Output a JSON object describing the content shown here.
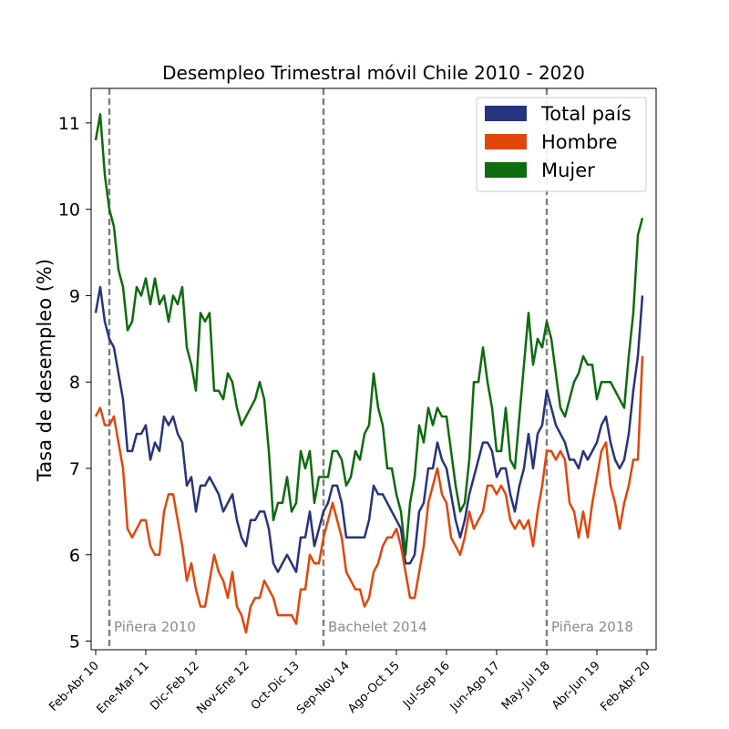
{
  "chart_data": {
    "type": "line",
    "title": "Desempleo Trimestral móvil Chile 2010 - 2020",
    "xlabel": "",
    "ylabel": "Tasa de desempleo (%)",
    "ylim": [
      4.9,
      11.4
    ],
    "yticks": [
      5,
      6,
      7,
      8,
      9,
      10,
      11
    ],
    "xticks": [
      {
        "index": 0,
        "label": "Feb-Abr 10"
      },
      {
        "index": 11,
        "label": "Ene-Mar 11"
      },
      {
        "index": 22,
        "label": "Dic-Feb 12"
      },
      {
        "index": 33,
        "label": "Nov-Ene 12"
      },
      {
        "index": 44,
        "label": "Oct-Dic 13"
      },
      {
        "index": 55,
        "label": "Sep-Nov 14"
      },
      {
        "index": 66,
        "label": "Ago-Oct 15"
      },
      {
        "index": 77,
        "label": "Jul-Sep 16"
      },
      {
        "index": 88,
        "label": "Jun-Ago 17"
      },
      {
        "index": 99,
        "label": "May-Jul 18"
      },
      {
        "index": 110,
        "label": "Abr-Jun 19"
      },
      {
        "index": 121,
        "label": "Feb-Abr 20"
      }
    ],
    "periods": [
      {
        "index": 3,
        "label": "Piñera 2010"
      },
      {
        "index": 50,
        "label": "Bachelet 2014"
      },
      {
        "index": 99,
        "label": "Piñera 2018"
      }
    ],
    "legend_position": "upper right",
    "grid": false,
    "series": [
      {
        "name": "Total país",
        "color": "#28347d",
        "values": [
          8.8,
          9.1,
          8.7,
          8.5,
          8.4,
          8.1,
          7.8,
          7.2,
          7.2,
          7.4,
          7.4,
          7.5,
          7.1,
          7.3,
          7.2,
          7.6,
          7.5,
          7.6,
          7.4,
          7.3,
          6.8,
          6.9,
          6.5,
          6.8,
          6.8,
          6.9,
          6.8,
          6.7,
          6.5,
          6.6,
          6.7,
          6.4,
          6.2,
          6.1,
          6.4,
          6.4,
          6.5,
          6.5,
          6.3,
          5.9,
          5.8,
          5.9,
          6.0,
          5.9,
          5.8,
          6.2,
          6.2,
          6.5,
          6.1,
          6.3,
          6.5,
          6.6,
          6.8,
          6.8,
          6.6,
          6.2,
          6.2,
          6.2,
          6.2,
          6.2,
          6.4,
          6.8,
          6.7,
          6.7,
          6.6,
          6.5,
          6.4,
          6.3,
          5.9,
          5.9,
          6.0,
          6.5,
          6.6,
          7.0,
          7.0,
          7.3,
          7.1,
          7.0,
          6.7,
          6.4,
          6.2,
          6.4,
          6.7,
          6.9,
          7.1,
          7.3,
          7.3,
          7.2,
          6.9,
          7.0,
          7.0,
          6.7,
          6.5,
          6.8,
          7.0,
          7.4,
          7.0,
          7.4,
          7.5,
          7.9,
          7.7,
          7.5,
          7.4,
          7.3,
          7.1,
          7.1,
          7.0,
          7.2,
          7.1,
          7.2,
          7.3,
          7.5,
          7.6,
          7.3,
          7.1,
          7.0,
          7.1,
          7.4,
          7.9,
          8.3,
          9.0
        ]
      },
      {
        "name": "Hombre",
        "color": "#e2460a",
        "values": [
          7.6,
          7.7,
          7.5,
          7.5,
          7.6,
          7.3,
          7.0,
          6.3,
          6.2,
          6.3,
          6.4,
          6.4,
          6.1,
          6.0,
          6.0,
          6.5,
          6.7,
          6.7,
          6.4,
          6.1,
          5.7,
          5.9,
          5.6,
          5.4,
          5.4,
          5.7,
          6.0,
          5.8,
          5.7,
          5.5,
          5.8,
          5.4,
          5.3,
          5.1,
          5.4,
          5.5,
          5.5,
          5.7,
          5.6,
          5.5,
          5.3,
          5.3,
          5.3,
          5.3,
          5.2,
          5.6,
          5.6,
          6.0,
          5.9,
          5.9,
          6.2,
          6.4,
          6.6,
          6.4,
          6.2,
          5.8,
          5.7,
          5.6,
          5.6,
          5.4,
          5.5,
          5.8,
          5.9,
          6.1,
          6.2,
          6.2,
          6.3,
          6.1,
          5.8,
          5.5,
          5.5,
          5.8,
          6.1,
          6.6,
          6.8,
          7.0,
          6.7,
          6.6,
          6.2,
          6.1,
          6.0,
          6.2,
          6.5,
          6.3,
          6.4,
          6.5,
          6.8,
          6.8,
          6.7,
          6.8,
          6.7,
          6.4,
          6.3,
          6.4,
          6.3,
          6.4,
          6.1,
          6.5,
          6.8,
          7.2,
          7.2,
          7.1,
          7.2,
          7.1,
          6.6,
          6.5,
          6.2,
          6.5,
          6.2,
          6.6,
          6.9,
          7.2,
          7.3,
          6.8,
          6.6,
          6.3,
          6.6,
          6.8,
          7.1,
          7.1,
          8.3
        ]
      },
      {
        "name": "Mujer",
        "color": "#0e6b0e",
        "values": [
          10.8,
          11.1,
          10.4,
          10.0,
          9.8,
          9.3,
          9.1,
          8.6,
          8.7,
          9.1,
          9.0,
          9.2,
          8.9,
          9.2,
          8.9,
          9.0,
          8.7,
          9.0,
          8.9,
          9.1,
          8.4,
          8.2,
          7.9,
          8.8,
          8.7,
          8.8,
          7.9,
          7.9,
          7.8,
          8.1,
          8.0,
          7.7,
          7.5,
          7.6,
          7.7,
          7.8,
          8.0,
          7.8,
          7.2,
          6.4,
          6.6,
          6.6,
          6.9,
          6.5,
          6.6,
          7.2,
          7.0,
          7.2,
          6.6,
          6.9,
          6.9,
          6.9,
          7.2,
          7.2,
          7.1,
          6.8,
          6.9,
          7.2,
          7.1,
          7.4,
          7.5,
          8.1,
          7.7,
          7.5,
          7.0,
          7.0,
          6.7,
          6.5,
          6.0,
          6.6,
          6.9,
          7.5,
          7.3,
          7.7,
          7.5,
          7.7,
          7.6,
          7.6,
          7.2,
          6.8,
          6.5,
          6.6,
          7.1,
          8.0,
          8.0,
          8.4,
          8.0,
          7.7,
          7.2,
          7.2,
          7.7,
          7.1,
          7.0,
          7.6,
          8.2,
          8.8,
          8.2,
          8.5,
          8.4,
          8.7,
          8.5,
          8.1,
          7.7,
          7.6,
          7.8,
          8.0,
          8.1,
          8.3,
          8.2,
          8.2,
          7.8,
          8.0,
          8.0,
          8.0,
          7.9,
          7.8,
          7.7,
          8.3,
          8.8,
          9.7,
          9.9
        ]
      }
    ]
  }
}
